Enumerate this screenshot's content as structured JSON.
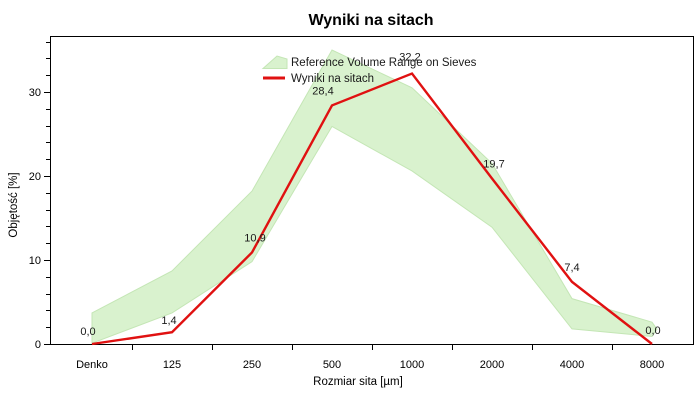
{
  "window": {
    "title": "Wyniki na sitach"
  },
  "chart_data": {
    "type": "line",
    "title": "Wyniki na sitach",
    "xlabel": "Rozmiar sita [µm]",
    "ylabel": "Objętość [%]",
    "categories": [
      "Denko",
      "125",
      "250",
      "500",
      "1000",
      "2000",
      "4000",
      "8000"
    ],
    "series": [
      {
        "name": "Reference Volume Range on Sieves",
        "type": "band",
        "fill_color": "#d9f2ce",
        "edge_color": "#c4e6b5",
        "upper": [
          3.7,
          8.7,
          18.2,
          35.0,
          30.5,
          21.5,
          5.4,
          2.6
        ],
        "lower": [
          0.1,
          3.7,
          9.8,
          25.9,
          20.6,
          13.9,
          1.8,
          0.9
        ]
      },
      {
        "name": "Wyniki na sitach",
        "type": "line",
        "color": "#e01111",
        "values": [
          0.0,
          1.4,
          10.9,
          28.4,
          32.2,
          19.7,
          7.4,
          0.0
        ],
        "labels": [
          "0,0",
          "1,4",
          "10,9",
          "28,4",
          "32,2",
          "19,7",
          "7,4",
          "0,0"
        ],
        "label_offsets": [
          [
            -4,
            -13
          ],
          [
            -3,
            -12
          ],
          [
            3,
            -15
          ],
          [
            -9,
            -15
          ],
          [
            -2,
            -17
          ],
          [
            2,
            -15
          ],
          [
            0,
            -15
          ],
          [
            1,
            -14
          ]
        ]
      }
    ],
    "legend": {
      "position": "top-center",
      "entries": [
        {
          "label": "Reference Volume Range on Sieves",
          "swatch": "band"
        },
        {
          "label": "Wyniki na sitach",
          "swatch": "line"
        }
      ]
    },
    "y_major_ticks": [
      0,
      10,
      20,
      30
    ],
    "y_minor_step": 2,
    "ylim": [
      0,
      36.7
    ],
    "grid": false,
    "frame": true
  }
}
